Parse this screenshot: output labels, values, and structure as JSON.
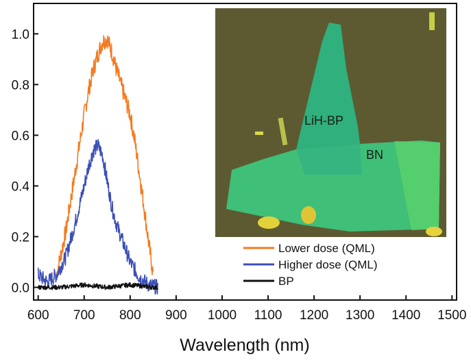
{
  "chart_data": {
    "type": "line",
    "xlabel": "Wavelength (nm)",
    "ylabel": "",
    "xlim": [
      590,
      1510
    ],
    "ylim": [
      -0.05,
      1.12
    ],
    "xticks": [
      600,
      700,
      800,
      900,
      1000,
      1100,
      1200,
      1300,
      1400,
      1500
    ],
    "yticks": [
      0.0,
      0.2,
      0.4,
      0.6,
      0.8,
      1.0
    ],
    "ytick_labels": [
      "0.0",
      "0.2",
      "0.4",
      "0.6",
      "0.8",
      "1.0"
    ],
    "grid": false,
    "legend_position": "bottom-right",
    "series": [
      {
        "name": "Lower dose (QML)",
        "color": "#f47a20",
        "x": [
          640,
          660,
          680,
          700,
          710,
          720,
          730,
          740,
          750,
          760,
          770,
          780,
          790,
          800,
          810,
          820,
          830,
          840,
          850
        ],
        "y": [
          0.05,
          0.22,
          0.45,
          0.68,
          0.78,
          0.86,
          0.92,
          0.97,
          0.98,
          0.93,
          0.86,
          0.8,
          0.74,
          0.68,
          0.58,
          0.45,
          0.32,
          0.18,
          0.05
        ]
      },
      {
        "name": "Higher dose (QML)",
        "color": "#3c4fb5",
        "x": [
          600,
          620,
          640,
          660,
          680,
          700,
          710,
          720,
          730,
          740,
          750,
          760,
          770,
          780,
          790,
          800,
          820,
          840,
          860
        ],
        "y": [
          0.05,
          0.02,
          0.05,
          0.12,
          0.25,
          0.4,
          0.48,
          0.54,
          0.56,
          0.52,
          0.42,
          0.32,
          0.25,
          0.2,
          0.15,
          0.1,
          0.04,
          0.01,
          0.0
        ]
      },
      {
        "name": "BP",
        "color": "#111111",
        "x": [
          600,
          650,
          700,
          750,
          800,
          850,
          860
        ],
        "y": [
          0.0,
          0.0,
          0.01,
          0.0,
          0.01,
          0.0,
          0.0
        ]
      }
    ],
    "inset": {
      "labels": [
        "LiH-BP",
        "BN"
      ]
    }
  }
}
